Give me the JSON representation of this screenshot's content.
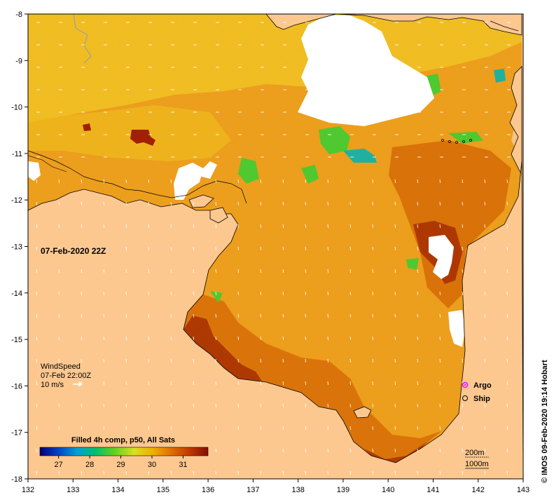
{
  "map": {
    "timestamp": "07-Feb-2020 22Z",
    "credit": "© IMOS 09-Feb-2020 19:14 Hobart",
    "lon_ticks": [
      "132",
      "133",
      "134",
      "135",
      "136",
      "137",
      "138",
      "139",
      "140",
      "141",
      "142",
      "143"
    ],
    "lat_ticks": [
      "-8",
      "-9",
      "-10",
      "-11",
      "-12",
      "-13",
      "-14",
      "-15",
      "-16",
      "-17",
      "-18"
    ],
    "lon_range": [
      132,
      143
    ],
    "lat_range": [
      -18,
      -8
    ]
  },
  "wind": {
    "title": "WindSpeed",
    "time": "07-Feb 22:00Z",
    "scale_label": "10 m/s"
  },
  "legend": {
    "argo_label": "Argo",
    "ship_label": "Ship",
    "argo_color": "#ff00ff",
    "ship_color": "#000000"
  },
  "colorbar": {
    "title": "Filled 4h comp, p50, All Sats",
    "ticks": [
      "27",
      "28",
      "29",
      "30",
      "31"
    ],
    "range": [
      26.4,
      31.8
    ],
    "tick_values": [
      27,
      28,
      29,
      30,
      31
    ],
    "colors": [
      "#00007a",
      "#0044c8",
      "#00a0d8",
      "#00c070",
      "#60d020",
      "#d8e020",
      "#f0b000",
      "#e07000",
      "#c03800",
      "#801000"
    ]
  },
  "contours": {
    "label_200": "200m",
    "label_1000": "1000m"
  },
  "colors": {
    "land": "#fcc890",
    "no_data": "#ffffff",
    "sst_base": "#f0a020",
    "sst_warm": "#d86a08",
    "sst_hot": "#a02000",
    "sst_cool": "#f4c828",
    "sst_green": "#50c830",
    "sst_cyan": "#20b0a0"
  }
}
